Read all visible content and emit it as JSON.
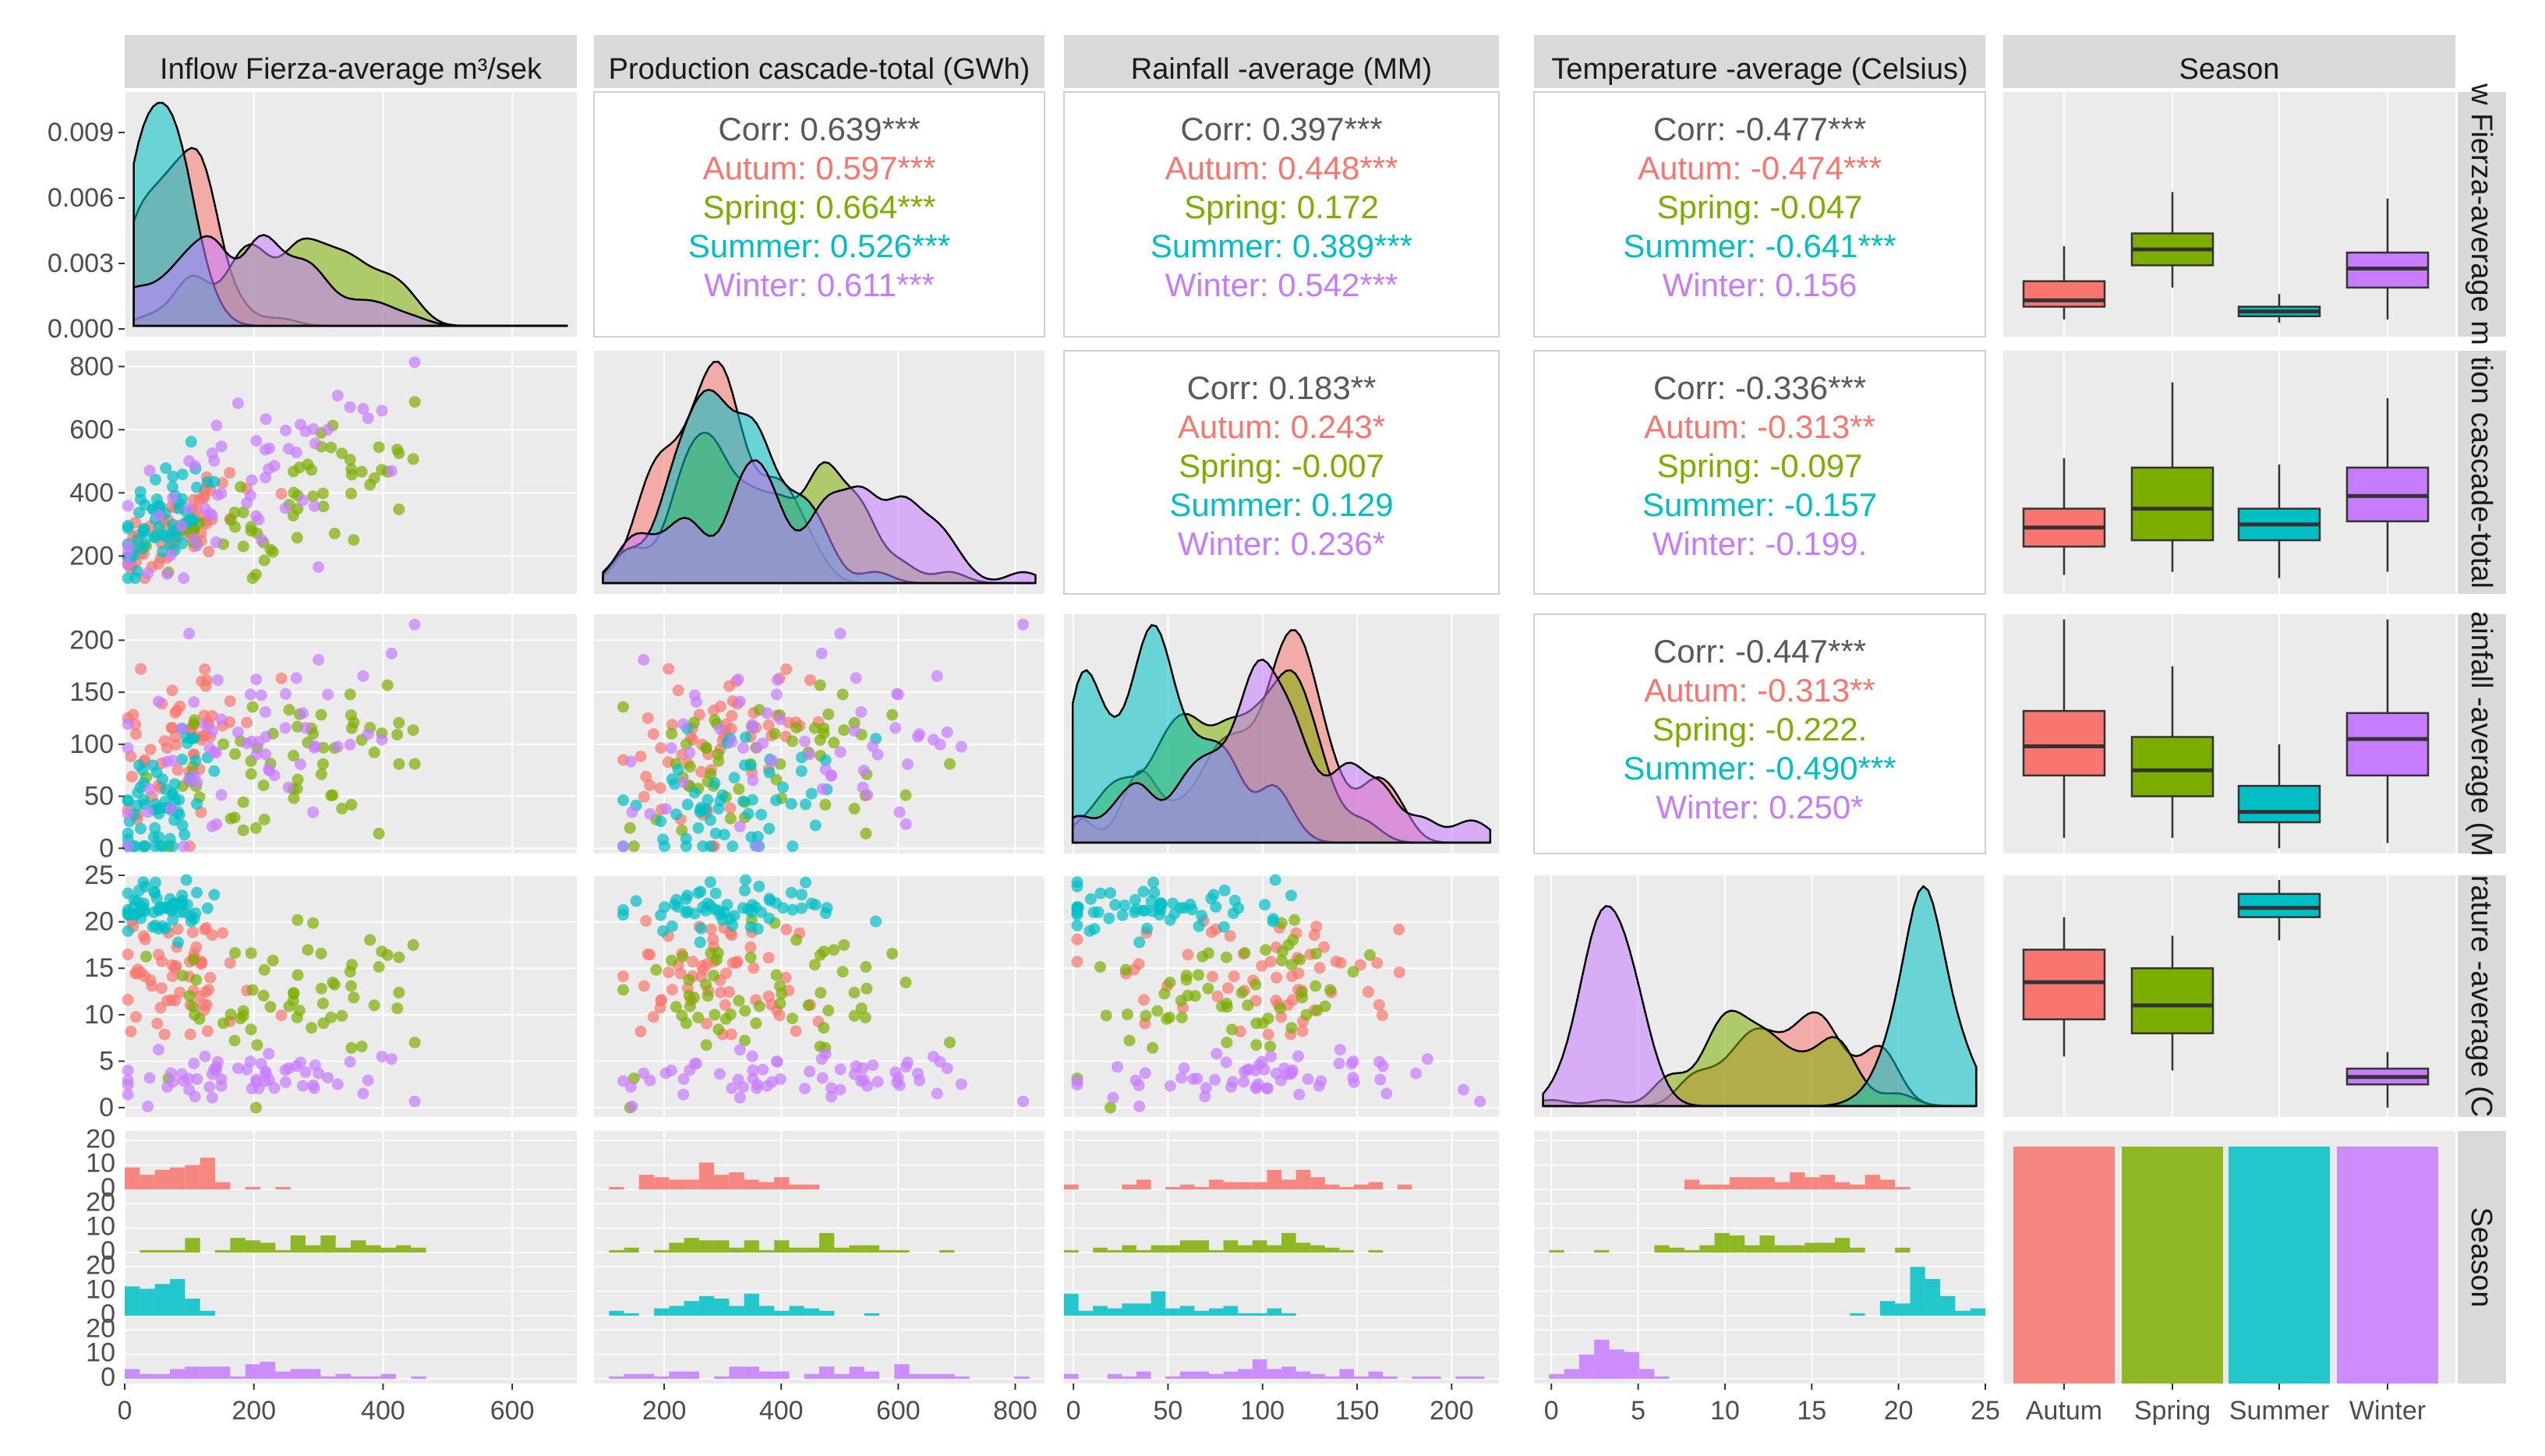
{
  "chart_data": {
    "type": "pairs",
    "title": "",
    "variables": [
      "Inflow Fierza-average m³/sek",
      "Production cascade-total  (GWh)",
      "Rainfall -average (MM)",
      "Temperature -average (Celsius)",
      "Season"
    ],
    "right_strips": [
      "w Fierza-average m",
      "tion cascade-total",
      "ainfall -average (M",
      "rature -average (C",
      "Season"
    ],
    "seasons": [
      "Autum",
      "Spring",
      "Summer",
      "Winter"
    ],
    "colors": {
      "Autum": "#F8766D",
      "Spring": "#7CAE00",
      "Summer": "#00BFC4",
      "Winter": "#C77CFF",
      "overall": "#595959",
      "panel_bg": "#EBEBEB",
      "strip_bg": "#D9D9D9"
    },
    "x_ticks": [
      [
        "0",
        "200",
        "400",
        "600"
      ],
      [
        "200",
        "400",
        "600",
        "800"
      ],
      [
        "0",
        "50",
        "100",
        "150",
        "200"
      ],
      [
        "0",
        "5",
        "10",
        "15",
        "20",
        "25"
      ],
      [
        "Autum",
        "Spring",
        "Summer",
        "Winter"
      ]
    ],
    "y_ticks": [
      [
        "0.000",
        "0.003",
        "0.006",
        "0.009"
      ],
      [
        "200",
        "400",
        "600",
        "800"
      ],
      [
        "0",
        "50",
        "100",
        "150",
        "200"
      ],
      [
        "0",
        "5",
        "10",
        "15",
        "20",
        "25"
      ],
      [
        "0",
        "10",
        "20",
        "0",
        "10",
        "20",
        "0",
        "10",
        "20",
        "0",
        "10",
        "20"
      ]
    ],
    "ranges": {
      "inflow": [
        0,
        700
      ],
      "production": [
        80,
        850
      ],
      "rainfall": [
        -5,
        225
      ],
      "temperature": [
        -1,
        25
      ]
    },
    "correlations": [
      {
        "pair": "Inflow vs Production",
        "lines": [
          "Corr: 0.639***",
          "Autum: 0.597***",
          "Spring: 0.664***",
          "Summer: 0.526***",
          "Winter: 0.611***"
        ]
      },
      {
        "pair": "Inflow vs Rainfall",
        "lines": [
          "Corr: 0.397***",
          "Autum: 0.448***",
          "Spring: 0.172",
          "Summer: 0.389***",
          "Winter: 0.542***"
        ]
      },
      {
        "pair": "Inflow vs Temperature",
        "lines": [
          "Corr: -0.477***",
          "Autum: -0.474***",
          "Spring: -0.047",
          "Summer: -0.641***",
          "Winter: 0.156"
        ]
      },
      {
        "pair": "Production vs Rainfall",
        "lines": [
          "Corr: 0.183**",
          "Autum: 0.243*",
          "Spring: -0.007",
          "Summer: 0.129",
          "Winter: 0.236*"
        ]
      },
      {
        "pair": "Production vs Temperature",
        "lines": [
          "Corr: -0.336***",
          "Autum: -0.313**",
          "Spring: -0.097",
          "Summer: -0.157",
          "Winter: -0.199."
        ]
      },
      {
        "pair": "Rainfall vs Temperature",
        "lines": [
          "Corr: -0.447***",
          "Autum: -0.313**",
          "Spring: -0.222.",
          "Summer: -0.490***",
          "Winter: 0.250*"
        ]
      }
    ],
    "boxplots": {
      "inflow": {
        "Autum": [
          20,
          60,
          80,
          140,
          250
        ],
        "Spring": [
          120,
          190,
          240,
          290,
          420
        ],
        "Summer": [
          10,
          30,
          45,
          60,
          100
        ],
        "Winter": [
          20,
          120,
          180,
          230,
          400
        ]
      },
      "production": {
        "Autum": [
          140,
          230,
          290,
          350,
          510
        ],
        "Spring": [
          150,
          250,
          350,
          480,
          750
        ],
        "Summer": [
          130,
          250,
          300,
          350,
          490
        ],
        "Winter": [
          150,
          310,
          390,
          480,
          700
        ]
      },
      "rainfall": {
        "Autum": [
          10,
          70,
          98,
          132,
          220
        ],
        "Spring": [
          10,
          50,
          75,
          107,
          175
        ],
        "Summer": [
          0,
          25,
          35,
          60,
          100
        ],
        "Winter": [
          5,
          70,
          105,
          130,
          220
        ]
      },
      "temperature": {
        "Autum": [
          5.5,
          9.5,
          13.5,
          17,
          20.5
        ],
        "Spring": [
          4,
          8,
          11,
          15,
          18.5
        ],
        "Summer": [
          18,
          20.5,
          21.5,
          23,
          24.5
        ],
        "Winter": [
          0,
          2.5,
          3.3,
          4.2,
          6
        ]
      }
    },
    "season_counts": {
      "Autum": 1,
      "Spring": 1,
      "Summer": 1,
      "Winter": 1
    },
    "grid": true,
    "legend": "none"
  }
}
